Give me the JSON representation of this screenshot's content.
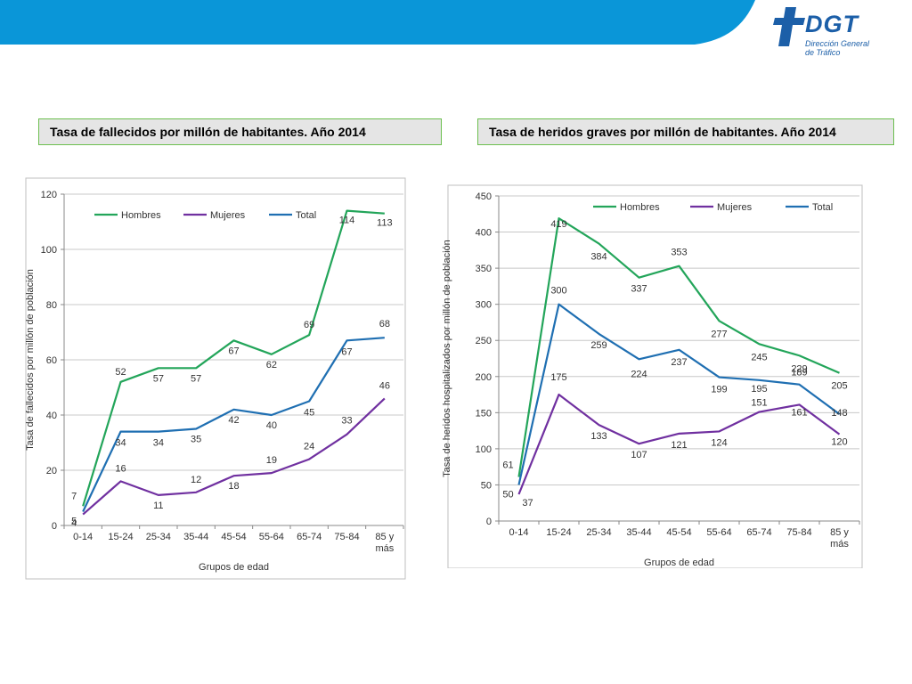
{
  "header": {
    "logo_text": "DGT",
    "logo_subtitle_1": "Dirección General",
    "logo_subtitle_2": "de Tráfico",
    "brand_color": "#0a96d8"
  },
  "colors": {
    "hombres": "#23a55a",
    "mujeres": "#7030a0",
    "total": "#1f6fb2"
  },
  "chart_data": [
    {
      "type": "line",
      "title": "Tasa de fallecidos por millón de habitantes. Año 2014",
      "xlabel": "Grupos de edad",
      "ylabel": "Tasa de fallecidos por millón de población",
      "categories": [
        "0-14",
        "15-24",
        "25-34",
        "35-44",
        "45-54",
        "55-64",
        "65-74",
        "75-84",
        "85 y más"
      ],
      "ylim": [
        0,
        120
      ],
      "yticks": [
        0,
        20,
        40,
        60,
        80,
        100,
        120
      ],
      "legend_position": "top",
      "series": [
        {
          "name": "Hombres",
          "values": [
            7,
            52,
            57,
            57,
            67,
            62,
            69,
            114,
            113
          ]
        },
        {
          "name": "Mujeres",
          "values": [
            4,
            16,
            11,
            12,
            18,
            19,
            24,
            33,
            46
          ]
        },
        {
          "name": "Total",
          "values": [
            5,
            34,
            34,
            35,
            42,
            40,
            45,
            67,
            68
          ]
        }
      ]
    },
    {
      "type": "line",
      "title": "Tasa de heridos graves por millón de habitantes. Año 2014",
      "xlabel": "Grupos de edad",
      "ylabel": "Tasa de heridos hospitalizados por millón de población",
      "categories": [
        "0-14",
        "15-24",
        "25-34",
        "35-44",
        "45-54",
        "55-64",
        "65-74",
        "75-84",
        "85 y más"
      ],
      "ylim": [
        0,
        450
      ],
      "yticks": [
        0,
        50,
        100,
        150,
        200,
        250,
        300,
        350,
        400,
        450
      ],
      "legend_position": "top",
      "series": [
        {
          "name": "Hombres",
          "values": [
            61,
            419,
            384,
            337,
            353,
            277,
            245,
            229,
            205
          ]
        },
        {
          "name": "Mujeres",
          "values": [
            37,
            175,
            133,
            107,
            121,
            124,
            151,
            161,
            120
          ]
        },
        {
          "name": "Total",
          "values": [
            50,
            300,
            259,
            224,
            237,
            199,
            195,
            189,
            148
          ]
        }
      ]
    }
  ]
}
